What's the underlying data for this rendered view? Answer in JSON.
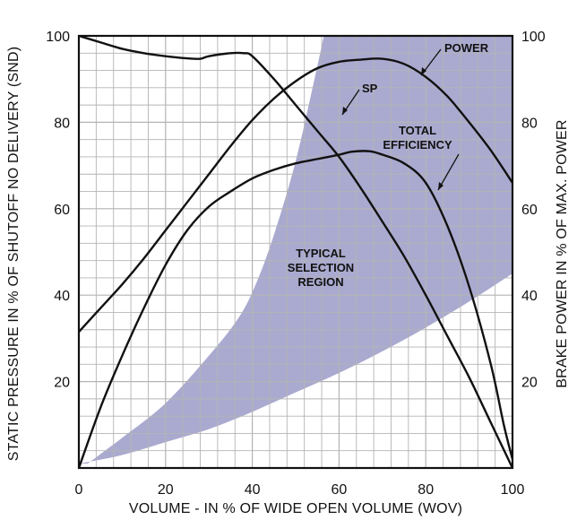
{
  "chart_data": {
    "type": "line",
    "xlabel": "VOLUME - IN % OF WIDE OPEN VOLUME (WOV)",
    "ylabel_left": "STATIC PRESSURE IN % OF SHUTOFF NO DELIVERY (SND)",
    "ylabel_right": "BRAKE POWER IN % OF MAX. POWER",
    "xlim": [
      0,
      100
    ],
    "ylim": [
      0,
      100
    ],
    "x_ticks": [
      "0",
      "20",
      "40",
      "60",
      "80",
      "100"
    ],
    "y_ticks_left": [
      "20",
      "40",
      "60",
      "80",
      "100"
    ],
    "y_ticks_right": [
      "20",
      "40",
      "60",
      "80",
      "100"
    ],
    "grid": true,
    "colors": {
      "region": "#aaaad0",
      "line": "#111111",
      "grid": "#b4b4b4"
    },
    "series": [
      {
        "name": "SP",
        "x": [
          0,
          5,
          10,
          15,
          20,
          25,
          28,
          30,
          35,
          38,
          40,
          45,
          50,
          55,
          60,
          65,
          70,
          75,
          80,
          85,
          90,
          95,
          100
        ],
        "y": [
          100,
          98.5,
          97,
          96,
          95.3,
          94.8,
          94.7,
          95.3,
          96.0,
          96.0,
          95.3,
          90,
          84,
          78,
          72,
          64.8,
          57,
          49,
          40,
          30.5,
          21,
          10.5,
          0
        ]
      },
      {
        "name": "POWER",
        "x": [
          0,
          5,
          10,
          15,
          20,
          25,
          30,
          35,
          40,
          45,
          50,
          55,
          60,
          65,
          70,
          75,
          80,
          85,
          90,
          95,
          100
        ],
        "y": [
          31.5,
          37,
          42.5,
          48.5,
          55,
          61.5,
          68,
          74.5,
          80.5,
          85.5,
          89.5,
          92.5,
          94,
          94.5,
          94.7,
          93.5,
          90.5,
          86,
          80,
          73.5,
          66
        ]
      },
      {
        "name": "TOTAL EFFICIENCY",
        "x": [
          0,
          5,
          10,
          15,
          20,
          25,
          30,
          35,
          40,
          45,
          50,
          55,
          60,
          63,
          67,
          70,
          75,
          80,
          85,
          90,
          95,
          98,
          100
        ],
        "y": [
          0,
          14,
          26,
          37,
          47,
          55,
          60.5,
          64,
          67,
          69,
          70.5,
          71.5,
          72.5,
          73.2,
          73.3,
          72.5,
          70.5,
          66,
          56,
          42,
          24,
          10,
          2
        ]
      }
    ],
    "region": {
      "label": [
        "TYPICAL",
        "SELECTION",
        "REGION"
      ],
      "upper": {
        "x": [
          2,
          10,
          20,
          30,
          37,
          41,
          45,
          50,
          55,
          56.5
        ],
        "y": [
          1,
          7,
          15,
          26,
          35,
          43,
          54,
          71,
          93,
          100
        ]
      },
      "upper_end": [
        100,
        100
      ],
      "lower": {
        "x": [
          100,
          90,
          80,
          70,
          60,
          50,
          40,
          30,
          20,
          10,
          0
        ],
        "y": [
          45,
          38.5,
          32.5,
          27,
          22,
          17.5,
          13,
          9,
          6,
          3,
          1
        ]
      }
    },
    "annotations": [
      {
        "text": [
          "POWER"
        ],
        "arrow": true
      },
      {
        "text": [
          "SP"
        ],
        "arrow": true
      },
      {
        "text": [
          "TOTAL",
          "EFFICIENCY"
        ],
        "arrow": true
      },
      {
        "text": [
          "TYPICAL",
          "SELECTION",
          "REGION"
        ],
        "arrow": false
      }
    ]
  }
}
